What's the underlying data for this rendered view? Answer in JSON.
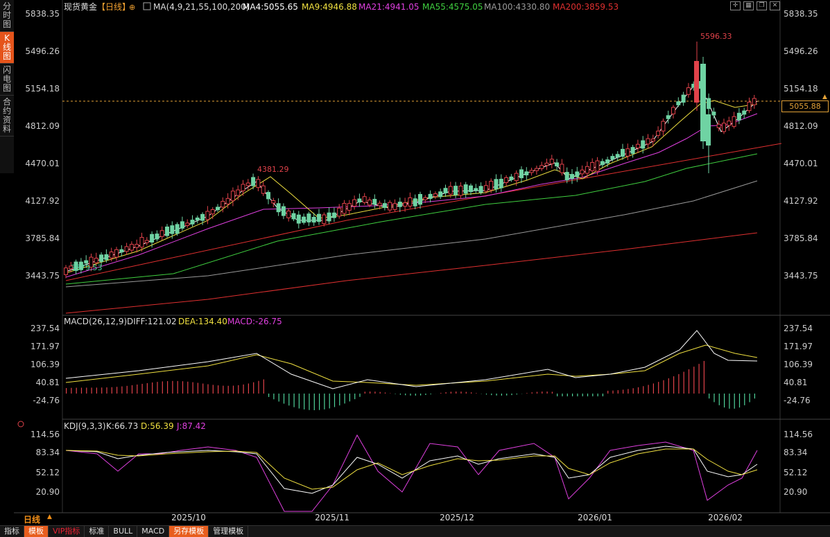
{
  "side_tabs": [
    "分时图",
    "K线图",
    "闪电图",
    "合约资料"
  ],
  "side_active": 1,
  "header": {
    "title": "现货黄金",
    "period": "【日线】",
    "ma_params": "MA(4,9,21,55,100,200)",
    "ma": [
      {
        "label": "MA4:5055.65",
        "color": "#ffffff"
      },
      {
        "label": "MA9:4946.88",
        "color": "#f0e040"
      },
      {
        "label": "MA21:4941.05",
        "color": "#e040e0"
      },
      {
        "label": "MA55:4575.05",
        "color": "#40d040"
      },
      {
        "label": "MA100:4330.80",
        "color": "#9a9a9a"
      },
      {
        "label": "MA200:3859.53",
        "color": "#e03030"
      }
    ]
  },
  "price_axis": [
    "5838.35",
    "5496.26",
    "5154.18",
    "4812.09",
    "4470.01",
    "4127.92",
    "3785.84",
    "3443.75"
  ],
  "current_price": "5055.88",
  "annotations": {
    "high": "5596.33",
    "mid_high": "4381.29",
    "low": "3579.53"
  },
  "macd": {
    "params": "MACD(26,12,9)",
    "diff": "DIFF:121.02",
    "dea": "DEA:134.40",
    "macd": "MACD:-26.75",
    "axis": [
      "237.54",
      "171.97",
      "106.39",
      "40.81",
      "-24.76"
    ]
  },
  "kdj": {
    "params": "KDJ(9,3,3)",
    "k": "K:66.73",
    "d": "D:56.39",
    "j": "J:87.42",
    "axis": [
      "114.56",
      "83.34",
      "52.12",
      "20.90"
    ]
  },
  "x_axis": [
    "2025/10",
    "2025/11",
    "2025/12",
    "2026/01",
    "2026/02"
  ],
  "period_label": "日线",
  "toolbar": [
    "指标",
    "模板",
    "VIP指标",
    "标准",
    "BULL",
    "MACD",
    "另存模板",
    "管理模板"
  ],
  "toolbar_active": [
    1,
    6
  ],
  "colors": {
    "up": "#e0424a",
    "down": "#6fd3a3",
    "macd_pos": "#e0424a",
    "macd_neg": "#4fd39a",
    "accent": "#e5541b"
  }
}
